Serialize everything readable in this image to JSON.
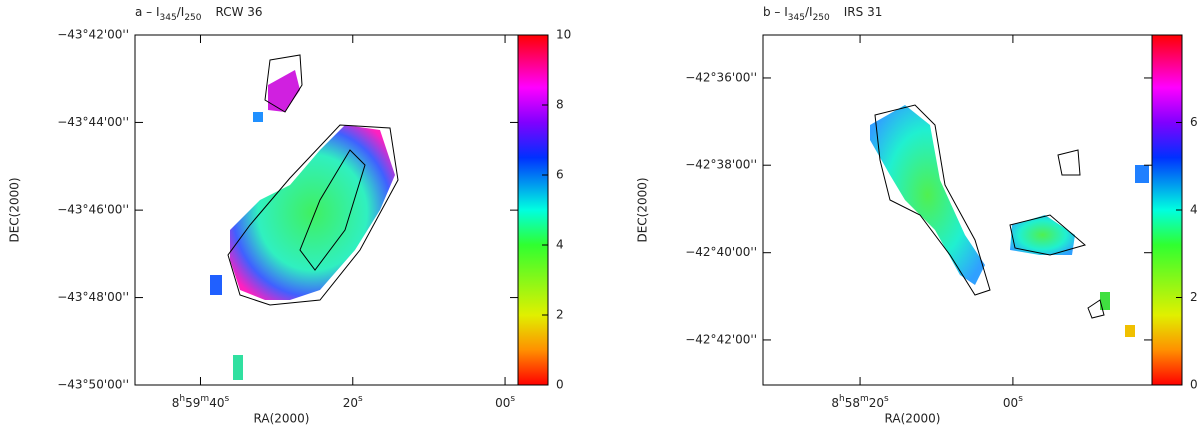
{
  "chart_data": [
    {
      "type": "image",
      "title": {
        "prefix": "a – I",
        "sub1": "345",
        "mid": "/I",
        "sub2": "250",
        "source": "RCW 36"
      },
      "xlabel": "RA(2000)",
      "ylabel": "DEC(2000)",
      "xlim": [
        48.6,
        -1.7
      ],
      "xticks": [
        {
          "value": 40,
          "label": "8h59m40s"
        },
        {
          "value": 20,
          "label": "20s"
        },
        {
          "value": 0,
          "label": "00s"
        }
      ],
      "ylim": [
        -43.8333,
        -43.7
      ],
      "yticks": [
        {
          "value": -43.7,
          "label": "−43°42'00''"
        },
        {
          "value": -43.7333,
          "label": "−43°44'00''"
        },
        {
          "value": -43.7667,
          "label": "−43°46'00''"
        },
        {
          "value": -43.8,
          "label": "−43°48'00''"
        },
        {
          "value": -43.8333,
          "label": "−43°50'00''"
        }
      ],
      "colorbar": {
        "lim": [
          0,
          10
        ],
        "ticks": [
          0,
          2,
          4,
          6,
          8,
          10
        ]
      }
    },
    {
      "type": "image",
      "title": {
        "prefix": "b – I",
        "sub1": "345",
        "mid": "/I",
        "sub2": "250",
        "source": "IRS 31"
      },
      "xlabel": "RA(2000)",
      "ylabel": "DEC(2000)",
      "xlim": [
        32.7,
        -18.2
      ],
      "xticks": [
        {
          "value": 20,
          "label": "8h58m20s"
        },
        {
          "value": 0,
          "label": "00s"
        }
      ],
      "ylim": [
        -42.7172,
        -42.5836
      ],
      "yticks": [
        {
          "value": -42.6,
          "label": "−42°36'00''"
        },
        {
          "value": -42.6333,
          "label": "−42°38'00''"
        },
        {
          "value": -42.6667,
          "label": "−42°40'00''"
        },
        {
          "value": -42.7,
          "label": "−42°42'00''"
        }
      ],
      "colorbar": {
        "lim": [
          0,
          8
        ],
        "ticks": [
          0,
          2,
          4,
          6
        ]
      }
    }
  ]
}
